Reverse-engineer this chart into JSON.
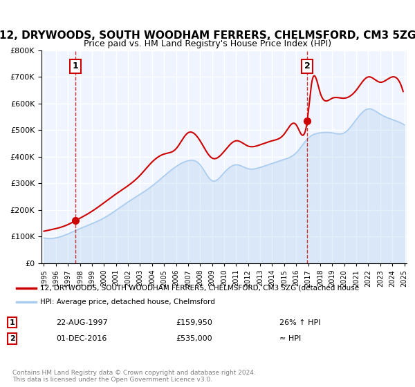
{
  "title": "12, DRYWOODS, SOUTH WOODHAM FERRERS, CHELMSFORD, CM3 5ZG",
  "subtitle": "Price paid vs. HM Land Registry's House Price Index (HPI)",
  "legend_line1": "12, DRYWOODS, SOUTH WOODHAM FERRERS, CHELMSFORD, CM3 5ZG (detached house",
  "legend_line2": "HPI: Average price, detached house, Chelmsford",
  "annotation1_label": "1",
  "annotation1_date": "22-AUG-1997",
  "annotation1_price": "£159,950",
  "annotation1_note": "26% ↑ HPI",
  "annotation2_label": "2",
  "annotation2_date": "01-DEC-2016",
  "annotation2_price": "£535,000",
  "annotation2_note": "≈ HPI",
  "copyright": "Contains HM Land Registry data © Crown copyright and database right 2024.\nThis data is licensed under the Open Government Licence v3.0.",
  "vline1_x": 1997.64,
  "vline2_x": 2016.92,
  "sale1_x": 1997.64,
  "sale1_y": 159950,
  "sale2_x": 2016.92,
  "sale2_y": 535000,
  "ylim": [
    0,
    800000
  ],
  "xlim_left": 1994.8,
  "xlim_right": 2025.2,
  "red_color": "#cc0000",
  "blue_color": "#aaccee",
  "background_color": "#f0f4ff",
  "grid_color": "#ffffff",
  "title_fontsize": 11,
  "subtitle_fontsize": 9
}
